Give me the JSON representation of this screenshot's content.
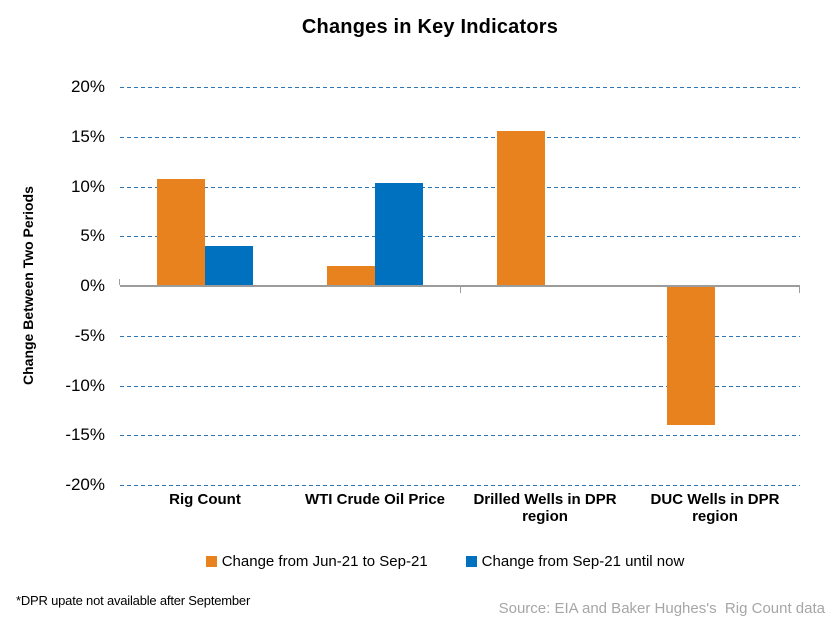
{
  "title": "Changes in Key Indicators",
  "chart_data": {
    "type": "bar",
    "title": "Changes in Key Indicators",
    "categories": [
      "Rig Count",
      "WTI Crude Oil Price",
      "Drilled Wells in DPR region",
      "DUC Wells in DPR region"
    ],
    "series": [
      {
        "name": "Change from Jun-21 to Sep-21",
        "color": "#E8821F",
        "values": [
          10.8,
          2.0,
          15.6,
          -14.0
        ]
      },
      {
        "name": "Change from Sep-21 until now",
        "color": "#0071BE",
        "values": [
          4.0,
          10.4,
          null,
          null
        ]
      }
    ],
    "xlabel": "",
    "ylabel": "Change Between Two Periods",
    "ylim": [
      -20,
      20
    ],
    "ytick_step": 5,
    "ytick_labels": [
      "20%",
      "15%",
      "10%",
      "5%",
      "0%",
      "-5%",
      "-10%",
      "-15%",
      "-20%"
    ],
    "grid": "horizontal-dashed",
    "legend_position": "bottom"
  },
  "legend": {
    "items": [
      {
        "label": "Change from Jun-21 to Sep-21",
        "color": "#E8821F"
      },
      {
        "label": "Change from Sep-21 until now",
        "color": "#0071BE"
      }
    ]
  },
  "footnote": "*DPR upate not available after September",
  "source": "Source: EIA and Baker Hughes's  Rig Count data",
  "colors": {
    "bar_orange": "#E8821F",
    "bar_blue": "#0071BE",
    "gridline_blue": "#2E75B6",
    "axis_gray": "#9C9C9C",
    "source_gray": "#A6A6A6",
    "text_black": "#000000"
  }
}
